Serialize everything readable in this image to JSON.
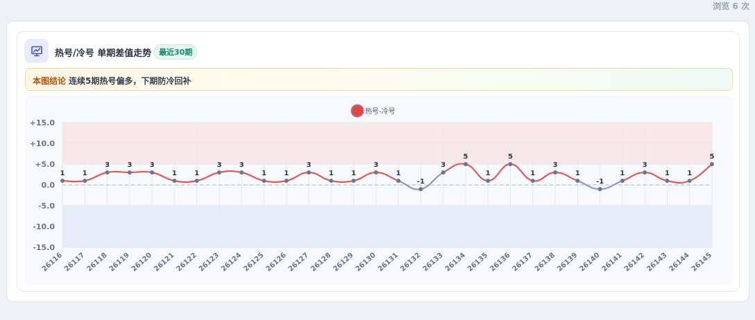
{
  "views_text": "浏览 6 次",
  "header": {
    "icon": "presentation-chart-icon",
    "title": "热号/冷号 单期差值走势",
    "badge": "最近30期"
  },
  "conclusion": {
    "label": "本图结论",
    "text": "连续5期热号偏多，下期防冷回补"
  },
  "colors": {
    "positive_line": "#e05858",
    "negative_line": "#8a9ab5",
    "points": "#6b7694",
    "hot_band": "#f8e8ea",
    "cold_band": "#e8eef9",
    "legend_dot": "#e04646"
  },
  "chart_data": {
    "type": "line",
    "legend": "热号-冷号",
    "legend_position": "top-center",
    "categories": [
      "26116",
      "26117",
      "26118",
      "26119",
      "26120",
      "26121",
      "26122",
      "26123",
      "26124",
      "26125",
      "26126",
      "26127",
      "26128",
      "26129",
      "26130",
      "26131",
      "26132",
      "26133",
      "26134",
      "26135",
      "26136",
      "26137",
      "26138",
      "26139",
      "26140",
      "26141",
      "26142",
      "26143",
      "26144",
      "26145"
    ],
    "series": [
      {
        "name": "热号-冷号",
        "values": [
          1,
          1,
          3,
          3,
          3,
          1,
          1,
          3,
          3,
          1,
          1,
          3,
          1,
          1,
          3,
          1,
          -1,
          3,
          5,
          1,
          5,
          1,
          3,
          1,
          -1,
          1,
          3,
          1,
          1,
          5
        ]
      }
    ],
    "data_labels": [
      "1",
      "1",
      "3",
      "3",
      "3",
      "1",
      "1",
      "3",
      "3",
      "1",
      "1",
      "3",
      "1",
      "1",
      "3",
      "1",
      "-1",
      "3",
      "5",
      "1",
      "5",
      "1",
      "3",
      "1",
      "-1",
      "1",
      "3",
      "1",
      "1",
      "5"
    ],
    "ylim": [
      -15,
      15
    ],
    "yticks": [
      15,
      10,
      5,
      0,
      -5,
      -10,
      -15
    ],
    "ytick_labels": [
      "+15.0",
      "+10.0",
      "+5.0",
      "0.0",
      "-5.0",
      "-10.0",
      "-15.0"
    ],
    "bands": {
      "hot": [
        5,
        15
      ],
      "cold": [
        -15,
        -5
      ]
    },
    "grid": true,
    "xlabel": "",
    "ylabel": ""
  }
}
